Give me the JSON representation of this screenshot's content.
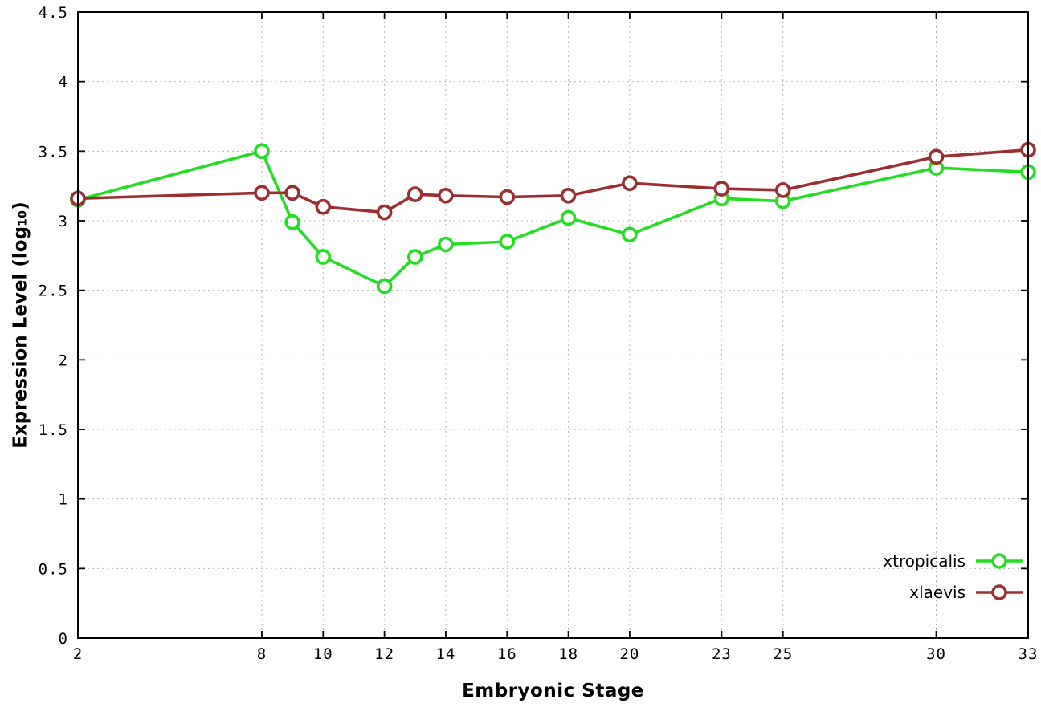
{
  "chart_data": {
    "type": "line",
    "title": "",
    "xlabel": "Embryonic Stage",
    "ylabel": "Expression Level (log₁₀)",
    "xlim": [
      2,
      33
    ],
    "ylim": [
      0,
      4.5
    ],
    "grid": true,
    "legend_position": "bottom-right",
    "x": [
      2,
      8,
      9,
      10,
      12,
      13,
      14,
      16,
      18,
      20,
      23,
      25,
      30,
      33
    ],
    "xticks": [
      "2",
      "8",
      "10",
      "12",
      "14",
      "16",
      "18",
      "20",
      "23",
      "25",
      "30",
      "33"
    ],
    "xtick_values": [
      2,
      8,
      10,
      12,
      14,
      16,
      18,
      20,
      23,
      25,
      30,
      33
    ],
    "ytick_labels": [
      "0",
      "0.5",
      "1",
      "1.5",
      "2",
      "2.5",
      "3",
      "3.5",
      "4",
      "4.5"
    ],
    "ytick_values": [
      0,
      0.5,
      1,
      1.5,
      2,
      2.5,
      3,
      3.5,
      4,
      4.5
    ],
    "series": [
      {
        "name": "xtropicalis",
        "color": "#22dd22",
        "values": [
          3.15,
          3.5,
          2.99,
          2.74,
          2.53,
          2.74,
          2.83,
          2.85,
          3.02,
          2.9,
          3.16,
          3.14,
          3.38,
          3.35
        ]
      },
      {
        "name": "xlaevis",
        "color": "#9b2f2f",
        "values": [
          3.16,
          3.2,
          3.2,
          3.1,
          3.06,
          3.19,
          3.18,
          3.17,
          3.18,
          3.27,
          3.23,
          3.22,
          3.46,
          3.51
        ]
      }
    ]
  }
}
